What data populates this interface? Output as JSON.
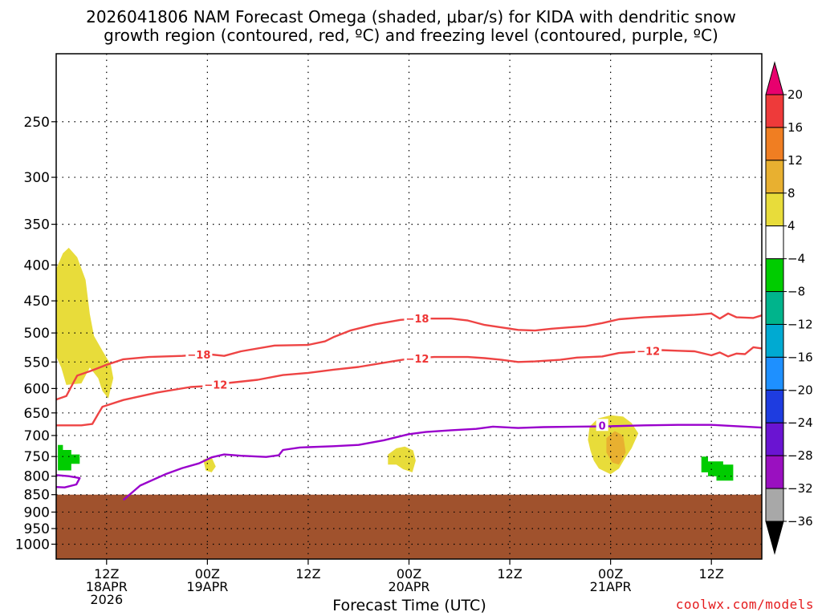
{
  "chart_data": {
    "type": "time-height cross section",
    "title_line1": "2026041806 NAM Forecast Omega (shaded, μbar/s) for KIDA with dendritic snow",
    "title_line2": "growth region (contoured, red, ºC) and freezing level (contoured, purple, ºC)",
    "xlabel": "Forecast Time (UTC)",
    "ylabel": "",
    "x_range_hours": [
      0,
      84
    ],
    "y_range_hPa": [
      1050,
      200
    ],
    "y_ticks": [
      250,
      300,
      350,
      400,
      450,
      500,
      550,
      600,
      650,
      700,
      750,
      800,
      850,
      900,
      950,
      1000
    ],
    "x_ticks": [
      {
        "hour": 6,
        "label1": "12Z",
        "label2": "18APR",
        "label3": "2026"
      },
      {
        "hour": 18,
        "label1": "00Z",
        "label2": "19APR",
        "label3": ""
      },
      {
        "hour": 30,
        "label1": "12Z",
        "label2": "",
        "label3": ""
      },
      {
        "hour": 42,
        "label1": "00Z",
        "label2": "20APR",
        "label3": ""
      },
      {
        "hour": 54,
        "label1": "12Z",
        "label2": "",
        "label3": ""
      },
      {
        "hour": 66,
        "label1": "00Z",
        "label2": "21APR",
        "label3": ""
      },
      {
        "hour": 78,
        "label1": "12Z",
        "label2": "",
        "label3": ""
      }
    ],
    "colorbar": {
      "labels": [
        "20",
        "16",
        "12",
        "8",
        "4",
        "−4",
        "−8",
        "−12",
        "−16",
        "−20",
        "−24",
        "−28",
        "−32",
        "−36"
      ],
      "colors": [
        "#e8006e",
        "#ee3a3a",
        "#f07e22",
        "#e8b030",
        "#e8dc3a",
        "#ffffff",
        "#00cc00",
        "#00b48c",
        "#00aad2",
        "#1e90ff",
        "#1e3ce0",
        "#6a14d2",
        "#9a10c0",
        "#a8a8a8",
        "#000000"
      ]
    },
    "series": [
      {
        "name": "-18 °C isotherm",
        "color": "#ee4444",
        "label": "−18",
        "points": [
          [
            0,
            622
          ],
          [
            1.2,
            615
          ],
          [
            2,
            590
          ],
          [
            2.5,
            575
          ],
          [
            4,
            567
          ],
          [
            6,
            555
          ],
          [
            8,
            545
          ],
          [
            11,
            541
          ],
          [
            15,
            539
          ],
          [
            18,
            536
          ],
          [
            20,
            539
          ],
          [
            22,
            531
          ],
          [
            26,
            521
          ],
          [
            30,
            520
          ],
          [
            32,
            514
          ],
          [
            33,
            507
          ],
          [
            35,
            496
          ],
          [
            38,
            486
          ],
          [
            41,
            479
          ],
          [
            43,
            477
          ],
          [
            45,
            477
          ],
          [
            47,
            477
          ],
          [
            49,
            480
          ],
          [
            51,
            487
          ],
          [
            53,
            491
          ],
          [
            55,
            495
          ],
          [
            57,
            496
          ],
          [
            59,
            493
          ],
          [
            61,
            491
          ],
          [
            63,
            489
          ],
          [
            65,
            484
          ],
          [
            67,
            478
          ],
          [
            70,
            475
          ],
          [
            73,
            473
          ],
          [
            76,
            471
          ],
          [
            78,
            469
          ],
          [
            79,
            477
          ],
          [
            80,
            469
          ],
          [
            81,
            475
          ],
          [
            83,
            476
          ],
          [
            84,
            472
          ]
        ]
      },
      {
        "name": "-12 °C isotherm",
        "color": "#ee4444",
        "label": "−12",
        "points": [
          [
            0,
            677
          ],
          [
            3,
            677
          ],
          [
            4.3,
            674
          ],
          [
            5,
            652
          ],
          [
            5.5,
            637
          ],
          [
            8,
            623
          ],
          [
            12,
            608
          ],
          [
            16,
            597
          ],
          [
            18,
            595
          ],
          [
            20,
            590
          ],
          [
            24,
            583
          ],
          [
            27,
            574
          ],
          [
            30,
            570
          ],
          [
            33,
            564
          ],
          [
            36,
            559
          ],
          [
            40,
            549
          ],
          [
            42,
            544
          ],
          [
            45,
            541
          ],
          [
            49,
            541
          ],
          [
            51,
            543
          ],
          [
            53,
            546
          ],
          [
            55,
            550
          ],
          [
            57,
            549
          ],
          [
            60,
            546
          ],
          [
            62,
            542
          ],
          [
            65,
            540
          ],
          [
            67,
            534
          ],
          [
            70,
            531
          ],
          [
            72,
            529
          ],
          [
            74,
            530
          ],
          [
            76,
            531
          ],
          [
            78,
            538
          ],
          [
            79,
            533
          ],
          [
            80,
            540
          ],
          [
            81,
            535
          ],
          [
            82,
            536
          ],
          [
            83,
            524
          ],
          [
            84,
            526
          ]
        ]
      },
      {
        "name": "0 °C freezing level",
        "color": "#9900cc",
        "label": "0",
        "points": [
          [
            8,
            865
          ],
          [
            10,
            825
          ],
          [
            13,
            795
          ],
          [
            15,
            779
          ],
          [
            17,
            767
          ],
          [
            18.5,
            752
          ],
          [
            20,
            745
          ],
          [
            22,
            748
          ],
          [
            25,
            751
          ],
          [
            26.5,
            747
          ],
          [
            27,
            734
          ],
          [
            29,
            728
          ],
          [
            33,
            725
          ],
          [
            36,
            722
          ],
          [
            39,
            711
          ],
          [
            42,
            697
          ],
          [
            44,
            692
          ],
          [
            47,
            688
          ],
          [
            50,
            685
          ],
          [
            52,
            680
          ],
          [
            55,
            683
          ],
          [
            58,
            681
          ],
          [
            62,
            680
          ],
          [
            66,
            679
          ],
          [
            70,
            677
          ],
          [
            74,
            676
          ],
          [
            78,
            676
          ],
          [
            80,
            678
          ],
          [
            82,
            680
          ],
          [
            84,
            682
          ]
        ]
      },
      {
        "name": "0 °C freezing level (lower segment)",
        "color": "#9900cc",
        "label": "",
        "points": [
          [
            0,
            797
          ],
          [
            1.5,
            800
          ],
          [
            2.8,
            805
          ],
          [
            2.4,
            822
          ],
          [
            1,
            830
          ],
          [
            0,
            829
          ]
        ]
      }
    ],
    "shaded_regions": [
      {
        "name": "omega 4-8 (west column)",
        "color": "#e8dc3a",
        "value_range": "4 to 8",
        "points": [
          [
            0,
            405
          ],
          [
            0.8,
            385
          ],
          [
            1.5,
            378
          ],
          [
            2.5,
            390
          ],
          [
            3.5,
            420
          ],
          [
            4,
            470
          ],
          [
            4.5,
            505
          ],
          [
            5.5,
            530
          ],
          [
            6.5,
            555
          ],
          [
            6.8,
            580
          ],
          [
            6.2,
            620
          ],
          [
            5.5,
            605
          ],
          [
            5,
            580
          ],
          [
            4,
            560
          ],
          [
            3,
            590
          ],
          [
            1.2,
            593
          ],
          [
            0.6,
            560
          ],
          [
            0,
            540
          ]
        ]
      },
      {
        "name": "omega 4-8 (19APR)",
        "color": "#e8dc3a",
        "value_range": "4 to 8",
        "points": [
          [
            17.5,
            757
          ],
          [
            18.5,
            752
          ],
          [
            19,
            775
          ],
          [
            18.5,
            790
          ],
          [
            17.8,
            785
          ]
        ]
      },
      {
        "name": "omega 4-8 (20APR)",
        "color": "#e8dc3a",
        "value_range": "4 to 8",
        "points": [
          [
            39.5,
            745
          ],
          [
            40.5,
            730
          ],
          [
            41.5,
            726
          ],
          [
            42.5,
            735
          ],
          [
            42.8,
            760
          ],
          [
            42.4,
            790
          ],
          [
            41.3,
            782
          ],
          [
            40.5,
            770
          ],
          [
            39.5,
            770
          ]
        ]
      },
      {
        "name": "omega 4-8 (21APR)",
        "color": "#e8dc3a",
        "value_range": "4 to 8",
        "points": [
          [
            63.5,
            680
          ],
          [
            64.5,
            662
          ],
          [
            66,
            655
          ],
          [
            67.5,
            658
          ],
          [
            68.5,
            672
          ],
          [
            69.3,
            695
          ],
          [
            68.5,
            730
          ],
          [
            67.6,
            758
          ],
          [
            67,
            780
          ],
          [
            66,
            795
          ],
          [
            64.6,
            780
          ],
          [
            64,
            760
          ],
          [
            63.6,
            735
          ],
          [
            63.3,
            710
          ]
        ]
      },
      {
        "name": "omega 8-12 (21APR)",
        "color": "#e8b030",
        "value_range": "8 to 12",
        "points": [
          [
            65.5,
            706
          ],
          [
            66.5,
            690
          ],
          [
            67.5,
            700
          ],
          [
            67.8,
            740
          ],
          [
            67,
            770
          ],
          [
            66.2,
            765
          ],
          [
            65.5,
            740
          ]
        ]
      },
      {
        "name": "omega -8 to -4 (west)",
        "color": "#00cc00",
        "value_range": "-8 to -4",
        "points": [
          [
            0.2,
            722
          ],
          [
            0.8,
            722
          ],
          [
            0.8,
            734
          ],
          [
            1.8,
            734
          ],
          [
            1.8,
            745
          ],
          [
            2.8,
            745
          ],
          [
            2.8,
            768
          ],
          [
            1.8,
            768
          ],
          [
            1.8,
            785
          ],
          [
            0.2,
            785
          ]
        ]
      },
      {
        "name": "omega -8 to -4 (east)",
        "color": "#00cc00",
        "value_range": "-8 to -4",
        "points": [
          [
            76.8,
            750
          ],
          [
            77.6,
            750
          ],
          [
            77.6,
            762
          ],
          [
            79.4,
            762
          ],
          [
            79.4,
            770
          ],
          [
            80.6,
            770
          ],
          [
            80.6,
            812
          ],
          [
            78.6,
            812
          ],
          [
            78.6,
            800
          ],
          [
            77.6,
            800
          ],
          [
            77.6,
            790
          ],
          [
            76.8,
            790
          ]
        ]
      }
    ],
    "contour_labels": [
      {
        "text": "−18",
        "hour": 43,
        "hPa": 477
      },
      {
        "text": "−18",
        "hour": 17,
        "hPa": 537
      },
      {
        "text": "−12",
        "hour": 43,
        "hPa": 544
      },
      {
        "text": "−12",
        "hour": 70.5,
        "hPa": 530
      },
      {
        "text": "−12",
        "hour": 19,
        "hPa": 592
      },
      {
        "text": "0",
        "hour": 65,
        "hPa": 677
      }
    ],
    "terrain": {
      "name": "surface / below ground",
      "color": "#a0522d",
      "top_hPa": 850
    }
  },
  "credit": "coolwx.com/models"
}
